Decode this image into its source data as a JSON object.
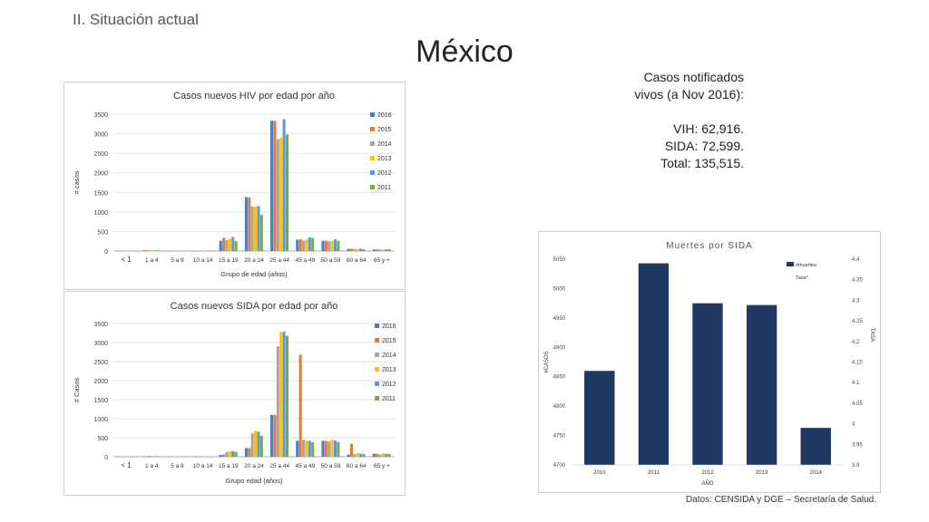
{
  "header": {
    "section": "II. Situación actual",
    "title": "México"
  },
  "notes": {
    "lines": [
      "Casos notificados",
      "vivos (a Nov 2016):",
      "",
      "VIH: 62,916.",
      "SIDA: 72,599.",
      "Total: 135,515."
    ]
  },
  "source": "Datos:   CENSIDA y DGE – Secretaría de Salud.",
  "colors": {
    "2016": "#4a7ec1",
    "2015": "#e07b39",
    "2014": "#a5a5a5",
    "2013": "#fdc010",
    "2012": "#5b9bd5",
    "2011": "#70ad47",
    "deaths": "#1f3864"
  },
  "chart_data": [
    {
      "type": "bar",
      "title": "Casos nuevos HIV por edad por año",
      "xlabel": "Grupo de edad (años)",
      "ylabel": "# casos",
      "ylim": [
        0,
        3500
      ],
      "yticks": [
        0,
        500,
        1000,
        1500,
        2000,
        2500,
        3000,
        3500
      ],
      "grid": true,
      "legend": "right",
      "categories": [
        "< 1",
        "1 a 4",
        "5 a 9",
        "10 a 14",
        "15 a 19",
        "20 a 24",
        "25 a 44",
        "45 a 49",
        "50 a 59",
        "60 a 64",
        "65 y +"
      ],
      "series": [
        {
          "name": "2016",
          "values": [
            5,
            15,
            5,
            5,
            260,
            1380,
            3330,
            290,
            260,
            55,
            40
          ]
        },
        {
          "name": "2015",
          "values": [
            5,
            20,
            5,
            5,
            340,
            1370,
            3330,
            300,
            270,
            60,
            45
          ]
        },
        {
          "name": "2014",
          "values": [
            5,
            15,
            5,
            5,
            280,
            1140,
            2860,
            270,
            250,
            50,
            40
          ]
        },
        {
          "name": "2013",
          "values": [
            5,
            15,
            5,
            5,
            310,
            1130,
            2900,
            290,
            260,
            55,
            40
          ]
        },
        {
          "name": "2012",
          "values": [
            5,
            20,
            5,
            5,
            360,
            1150,
            3370,
            350,
            300,
            60,
            45
          ]
        },
        {
          "name": "2011",
          "values": [
            5,
            15,
            5,
            5,
            250,
            930,
            2980,
            330,
            260,
            45,
            40
          ]
        }
      ]
    },
    {
      "type": "bar",
      "title": "Casos nuevos SIDA por edad por año",
      "xlabel": "Grupo  edad (años)",
      "ylabel": "# Casos",
      "ylim": [
        0,
        3500
      ],
      "yticks": [
        0,
        500,
        1000,
        1500,
        2000,
        2500,
        3000,
        3500
      ],
      "grid": true,
      "legend": "right",
      "categories": [
        "< 1",
        "1 a 4",
        "5 a 9",
        "10 a 14",
        "15 a 19",
        "20 a 24",
        "25 a 44",
        "45 a 49",
        "50 a 59",
        "60 a 64",
        "65 y +"
      ],
      "series": [
        {
          "name": "2016",
          "values": [
            5,
            10,
            5,
            5,
            50,
            230,
            1100,
            420,
            420,
            60,
            80
          ]
        },
        {
          "name": "2015",
          "values": [
            5,
            15,
            5,
            5,
            60,
            230,
            1100,
            2680,
            420,
            340,
            80
          ]
        },
        {
          "name": "2014",
          "values": [
            5,
            25,
            5,
            5,
            120,
            620,
            2900,
            450,
            400,
            70,
            60
          ]
        },
        {
          "name": "2013",
          "values": [
            5,
            20,
            5,
            5,
            140,
            680,
            3280,
            420,
            450,
            100,
            90
          ]
        },
        {
          "name": "2012",
          "values": [
            5,
            15,
            5,
            5,
            150,
            660,
            3290,
            420,
            430,
            80,
            80
          ]
        },
        {
          "name": "2011",
          "values": [
            5,
            10,
            5,
            5,
            130,
            550,
            3180,
            380,
            390,
            70,
            70
          ]
        }
      ]
    },
    {
      "type": "bar",
      "title": "Muertes por SIDA",
      "xlabel": "AÑO",
      "ylabel": "#CASOS",
      "y2label": "TASA",
      "ylim": [
        4700,
        5050
      ],
      "yticks": [
        4700,
        4750,
        4800,
        4850,
        4900,
        4950,
        5000,
        5050
      ],
      "y2lim": [
        3.9,
        4.4
      ],
      "y2ticks": [
        "3.9",
        "3.95",
        "4",
        "4.05",
        "4.1",
        "4.15",
        "4.2",
        "4.25",
        "4.3",
        "4.35",
        "4.4"
      ],
      "grid": false,
      "legend": "top-right",
      "legend_entries": [
        "#muertes",
        "Tasa*"
      ],
      "categories": [
        "2010",
        "2011",
        "2012",
        "2013",
        "2014"
      ],
      "series": [
        {
          "name": "#muertes",
          "values": [
            4860,
            5043,
            4975,
            4972,
            4763
          ]
        }
      ]
    }
  ]
}
